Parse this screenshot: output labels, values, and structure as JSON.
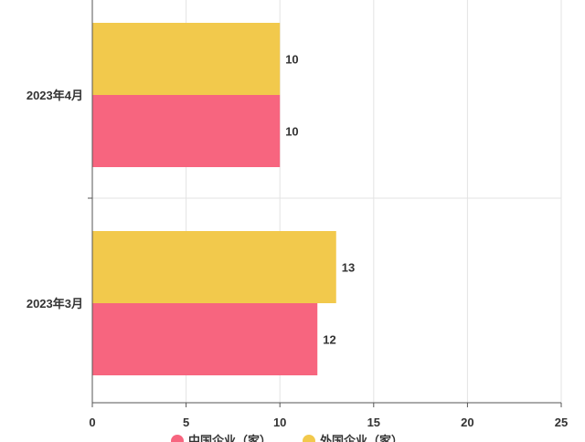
{
  "chart_data": {
    "type": "bar",
    "orientation": "horizontal",
    "categories": [
      "2023年4月",
      "2023年3月"
    ],
    "series": [
      {
        "name": "中国企业（家）",
        "values": [
          10,
          12
        ],
        "color": "#f7657f"
      },
      {
        "name": "外国企业（家）",
        "values": [
          10,
          13
        ],
        "color": "#f2c94c"
      }
    ],
    "xlim": [
      0,
      25
    ],
    "xticks": [
      0,
      5,
      10,
      15,
      20,
      25
    ],
    "grid": true,
    "legend_position": "bottom",
    "data_labels": true
  }
}
